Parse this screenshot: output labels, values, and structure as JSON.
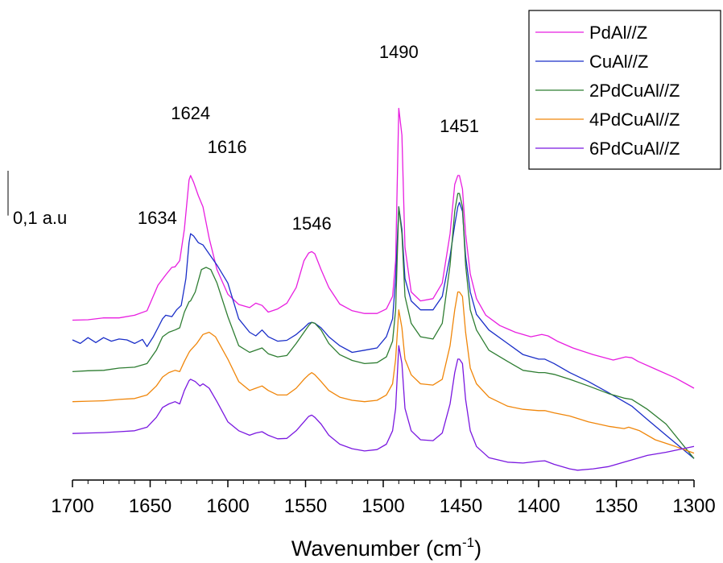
{
  "chart_data": {
    "type": "line",
    "title": "",
    "xlabel": "Wavenumber (cm",
    "xlabel_sup": "-1",
    "xlabel_suffix": ")",
    "ylabel": "",
    "xlim": [
      1700,
      1300
    ],
    "ylim": [
      0,
      1
    ],
    "x_reversed": true,
    "x_ticks": [
      1700,
      1650,
      1600,
      1550,
      1500,
      1450,
      1400,
      1350,
      1300
    ],
    "grid": false,
    "legend_position": "top-right",
    "scale_bar": {
      "label": "0,1 a.u",
      "value": 0.1
    },
    "peak_labels": [
      {
        "text": "1634",
        "x": 1634
      },
      {
        "text": "1624",
        "x": 1624
      },
      {
        "text": "1616",
        "x": 1616
      },
      {
        "text": "1546",
        "x": 1546
      },
      {
        "text": "1490",
        "x": 1490
      },
      {
        "text": "1451",
        "x": 1451
      }
    ],
    "series": [
      {
        "name": "PdAl//Z",
        "color": "#e81ee0",
        "x": [
          1700,
          1690,
          1680,
          1670,
          1660,
          1652,
          1645,
          1640,
          1636,
          1634,
          1631,
          1628,
          1625,
          1624,
          1622,
          1619,
          1616,
          1612,
          1607,
          1600,
          1593,
          1586,
          1582,
          1578,
          1574,
          1568,
          1562,
          1556,
          1551,
          1548,
          1546,
          1544,
          1540,
          1535,
          1528,
          1520,
          1512,
          1504,
          1498,
          1494,
          1492,
          1490,
          1488,
          1486,
          1482,
          1476,
          1468,
          1462,
          1457,
          1454,
          1452,
          1451,
          1449,
          1447,
          1444,
          1440,
          1434,
          1425,
          1415,
          1405,
          1398,
          1394,
          1388,
          1378,
          1365,
          1352,
          1344,
          1340,
          1336,
          1325,
          1312,
          1300
        ],
        "y": [
          0.357,
          0.358,
          0.362,
          0.362,
          0.368,
          0.378,
          0.435,
          0.458,
          0.475,
          0.476,
          0.49,
          0.56,
          0.67,
          0.68,
          0.665,
          0.635,
          0.61,
          0.54,
          0.47,
          0.415,
          0.392,
          0.385,
          0.395,
          0.39,
          0.375,
          0.382,
          0.395,
          0.43,
          0.49,
          0.507,
          0.51,
          0.505,
          0.47,
          0.43,
          0.393,
          0.378,
          0.372,
          0.372,
          0.382,
          0.41,
          0.49,
          0.83,
          0.77,
          0.52,
          0.42,
          0.4,
          0.405,
          0.44,
          0.55,
          0.66,
          0.68,
          0.68,
          0.65,
          0.55,
          0.46,
          0.405,
          0.368,
          0.345,
          0.33,
          0.32,
          0.325,
          0.322,
          0.31,
          0.295,
          0.28,
          0.268,
          0.275,
          0.273,
          0.265,
          0.248,
          0.228,
          0.205
        ]
      },
      {
        "name": "CuAl//Z",
        "color": "#1a2ec8",
        "x": [
          1700,
          1695,
          1690,
          1685,
          1680,
          1675,
          1670,
          1665,
          1660,
          1655,
          1652,
          1648,
          1645,
          1642,
          1640,
          1636,
          1633,
          1630,
          1627,
          1625,
          1624,
          1622,
          1619,
          1616,
          1612,
          1607,
          1600,
          1593,
          1586,
          1582,
          1578,
          1574,
          1568,
          1562,
          1556,
          1551,
          1548,
          1546,
          1544,
          1540,
          1535,
          1528,
          1520,
          1512,
          1504,
          1498,
          1494,
          1492,
          1490,
          1488,
          1486,
          1482,
          1476,
          1468,
          1462,
          1457,
          1454,
          1452,
          1451,
          1449,
          1447,
          1444,
          1440,
          1432,
          1420,
          1410,
          1400,
          1396,
          1390,
          1380,
          1368,
          1355,
          1345,
          1340,
          1330,
          1318,
          1300
        ],
        "y": [
          0.313,
          0.305,
          0.318,
          0.307,
          0.318,
          0.31,
          0.315,
          0.313,
          0.305,
          0.314,
          0.298,
          0.32,
          0.34,
          0.36,
          0.368,
          0.365,
          0.38,
          0.39,
          0.45,
          0.53,
          0.55,
          0.545,
          0.53,
          0.525,
          0.505,
          0.48,
          0.44,
          0.36,
          0.33,
          0.322,
          0.335,
          0.32,
          0.31,
          0.312,
          0.325,
          0.34,
          0.35,
          0.352,
          0.35,
          0.34,
          0.32,
          0.3,
          0.285,
          0.29,
          0.295,
          0.32,
          0.36,
          0.45,
          0.61,
          0.56,
          0.45,
          0.4,
          0.38,
          0.38,
          0.41,
          0.5,
          0.57,
          0.61,
          0.62,
          0.6,
          0.5,
          0.42,
          0.37,
          0.335,
          0.305,
          0.28,
          0.27,
          0.27,
          0.26,
          0.24,
          0.22,
          0.195,
          0.175,
          0.165,
          0.135,
          0.1,
          0.048
        ]
      },
      {
        "name": "2PdCuAl//Z",
        "color": "#2e7d32",
        "x": [
          1700,
          1690,
          1680,
          1670,
          1660,
          1652,
          1646,
          1642,
          1638,
          1634,
          1631,
          1628,
          1625,
          1624,
          1621,
          1617,
          1614,
          1611,
          1607,
          1600,
          1593,
          1586,
          1582,
          1578,
          1574,
          1568,
          1562,
          1556,
          1551,
          1548,
          1546,
          1544,
          1540,
          1535,
          1528,
          1520,
          1512,
          1504,
          1498,
          1494,
          1492,
          1490,
          1488,
          1486,
          1482,
          1476,
          1468,
          1462,
          1457,
          1454,
          1452,
          1451,
          1449,
          1447,
          1444,
          1440,
          1432,
          1420,
          1410,
          1400,
          1396,
          1390,
          1380,
          1368,
          1355,
          1345,
          1340,
          1330,
          1318,
          1300
        ],
        "y": [
          0.242,
          0.244,
          0.245,
          0.25,
          0.252,
          0.26,
          0.29,
          0.32,
          0.33,
          0.335,
          0.34,
          0.375,
          0.398,
          0.4,
          0.42,
          0.47,
          0.475,
          0.47,
          0.44,
          0.365,
          0.3,
          0.285,
          0.29,
          0.295,
          0.282,
          0.275,
          0.278,
          0.305,
          0.33,
          0.345,
          0.352,
          0.35,
          0.335,
          0.305,
          0.28,
          0.267,
          0.26,
          0.262,
          0.275,
          0.31,
          0.38,
          0.61,
          0.55,
          0.41,
          0.35,
          0.32,
          0.315,
          0.35,
          0.48,
          0.6,
          0.64,
          0.64,
          0.61,
          0.48,
          0.38,
          0.335,
          0.29,
          0.265,
          0.245,
          0.24,
          0.24,
          0.236,
          0.225,
          0.21,
          0.193,
          0.183,
          0.18,
          0.158,
          0.125,
          0.048
        ]
      },
      {
        "name": "4PdCuAl//Z",
        "color": "#f0860a",
        "x": [
          1700,
          1690,
          1680,
          1670,
          1660,
          1652,
          1646,
          1642,
          1638,
          1634,
          1631,
          1628,
          1625,
          1624,
          1620,
          1616,
          1612,
          1608,
          1600,
          1593,
          1586,
          1582,
          1578,
          1574,
          1568,
          1562,
          1556,
          1551,
          1548,
          1546,
          1544,
          1540,
          1535,
          1528,
          1520,
          1512,
          1504,
          1498,
          1494,
          1492,
          1490,
          1488,
          1486,
          1482,
          1476,
          1468,
          1462,
          1457,
          1454,
          1452,
          1451,
          1449,
          1447,
          1444,
          1440,
          1432,
          1420,
          1410,
          1400,
          1396,
          1390,
          1380,
          1368,
          1355,
          1345,
          1342,
          1335,
          1325,
          1312,
          1300
        ],
        "y": [
          0.175,
          0.176,
          0.177,
          0.18,
          0.182,
          0.19,
          0.21,
          0.23,
          0.24,
          0.245,
          0.242,
          0.265,
          0.285,
          0.29,
          0.305,
          0.325,
          0.33,
          0.32,
          0.27,
          0.22,
          0.2,
          0.205,
          0.21,
          0.2,
          0.19,
          0.19,
          0.205,
          0.225,
          0.235,
          0.24,
          0.235,
          0.22,
          0.2,
          0.185,
          0.178,
          0.175,
          0.178,
          0.19,
          0.215,
          0.27,
          0.38,
          0.34,
          0.27,
          0.235,
          0.215,
          0.212,
          0.225,
          0.3,
          0.38,
          0.42,
          0.42,
          0.41,
          0.33,
          0.25,
          0.215,
          0.185,
          0.165,
          0.158,
          0.155,
          0.155,
          0.15,
          0.143,
          0.13,
          0.12,
          0.115,
          0.118,
          0.11,
          0.09,
          0.075,
          0.06
        ]
      },
      {
        "name": "6PdCuAl//Z",
        "color": "#7a18e0",
        "x": [
          1700,
          1690,
          1680,
          1670,
          1660,
          1652,
          1646,
          1642,
          1638,
          1634,
          1631,
          1628,
          1625,
          1624,
          1621,
          1618,
          1616,
          1612,
          1607,
          1600,
          1593,
          1586,
          1582,
          1578,
          1574,
          1568,
          1562,
          1556,
          1551,
          1548,
          1546,
          1544,
          1540,
          1535,
          1528,
          1520,
          1512,
          1504,
          1498,
          1494,
          1492,
          1490,
          1488,
          1486,
          1482,
          1476,
          1468,
          1462,
          1457,
          1454,
          1452,
          1451,
          1449,
          1447,
          1444,
          1440,
          1432,
          1420,
          1410,
          1400,
          1396,
          1390,
          1380,
          1375,
          1365,
          1355,
          1345,
          1340,
          1330,
          1318,
          1300
        ],
        "y": [
          0.104,
          0.105,
          0.106,
          0.108,
          0.11,
          0.118,
          0.14,
          0.162,
          0.17,
          0.175,
          0.17,
          0.2,
          0.222,
          0.225,
          0.22,
          0.21,
          0.215,
          0.205,
          0.175,
          0.13,
          0.11,
          0.1,
          0.105,
          0.108,
          0.1,
          0.092,
          0.093,
          0.11,
          0.13,
          0.142,
          0.145,
          0.14,
          0.125,
          0.1,
          0.08,
          0.07,
          0.065,
          0.068,
          0.08,
          0.11,
          0.16,
          0.3,
          0.26,
          0.16,
          0.11,
          0.09,
          0.088,
          0.105,
          0.17,
          0.24,
          0.27,
          0.27,
          0.26,
          0.18,
          0.11,
          0.075,
          0.05,
          0.04,
          0.038,
          0.042,
          0.043,
          0.035,
          0.025,
          0.022,
          0.025,
          0.03,
          0.04,
          0.045,
          0.055,
          0.062,
          0.075
        ]
      }
    ]
  }
}
